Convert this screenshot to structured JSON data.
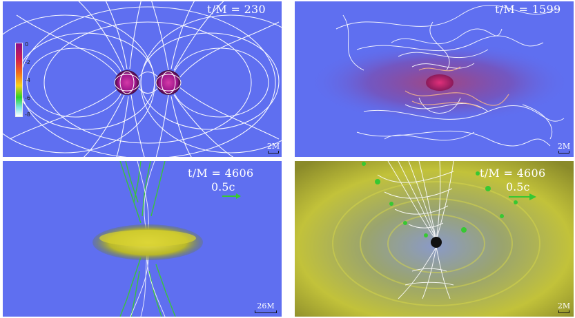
{
  "panels": [
    {
      "time": "t/M = 230",
      "scale": "2M",
      "colorbar_ticks": [
        "0",
        "-2",
        "-4",
        "-6",
        "-8"
      ]
    },
    {
      "time": "t/M = 1599",
      "scale": "2M"
    },
    {
      "time": "t/M = 4606",
      "velocity": "0.5c",
      "scale": "26M"
    },
    {
      "time": "t/M = 4606",
      "velocity": "0.5c",
      "scale": "2M"
    }
  ],
  "colors": {
    "background_blue": "#5f6ff0",
    "field_lines": "#ffffff",
    "disk_yellow": "#c8c81e",
    "arrows_green": "#37c832",
    "star_magenta": "#b5178f"
  }
}
